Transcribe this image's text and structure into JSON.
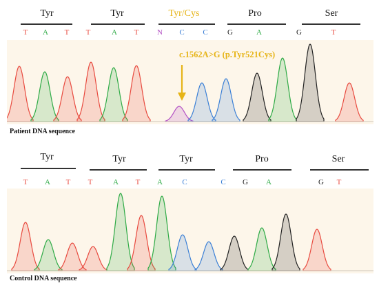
{
  "patient": {
    "amino_acids": [
      "Tyr",
      "Tyr",
      "Tyr/Cys",
      "Pro",
      "Ser"
    ],
    "highlight_index": 2,
    "bases": [
      "T",
      "A",
      "T",
      "T",
      "A",
      "T",
      "N",
      "C",
      "C",
      "G",
      "A",
      "G",
      "T"
    ],
    "mutation_label": "c.1562A>G (p.Tyr521Cys)",
    "caption": "Patient DNA sequence"
  },
  "control": {
    "amino_acids": [
      "Tyr",
      "Tyr",
      "Tyr",
      "Pro",
      "Ser"
    ],
    "bases": [
      "T",
      "A",
      "T",
      "T",
      "A",
      "T",
      "A",
      "C",
      "C",
      "G",
      "A",
      "G",
      "T"
    ],
    "caption": "Control DNA sequence"
  },
  "colors": {
    "T": "#e84a3f",
    "A": "#2daa45",
    "C": "#3a7fd6",
    "G": "#222222",
    "N": "#b24fc4",
    "highlight": "#e6b417",
    "background": "#fdf6ea"
  }
}
